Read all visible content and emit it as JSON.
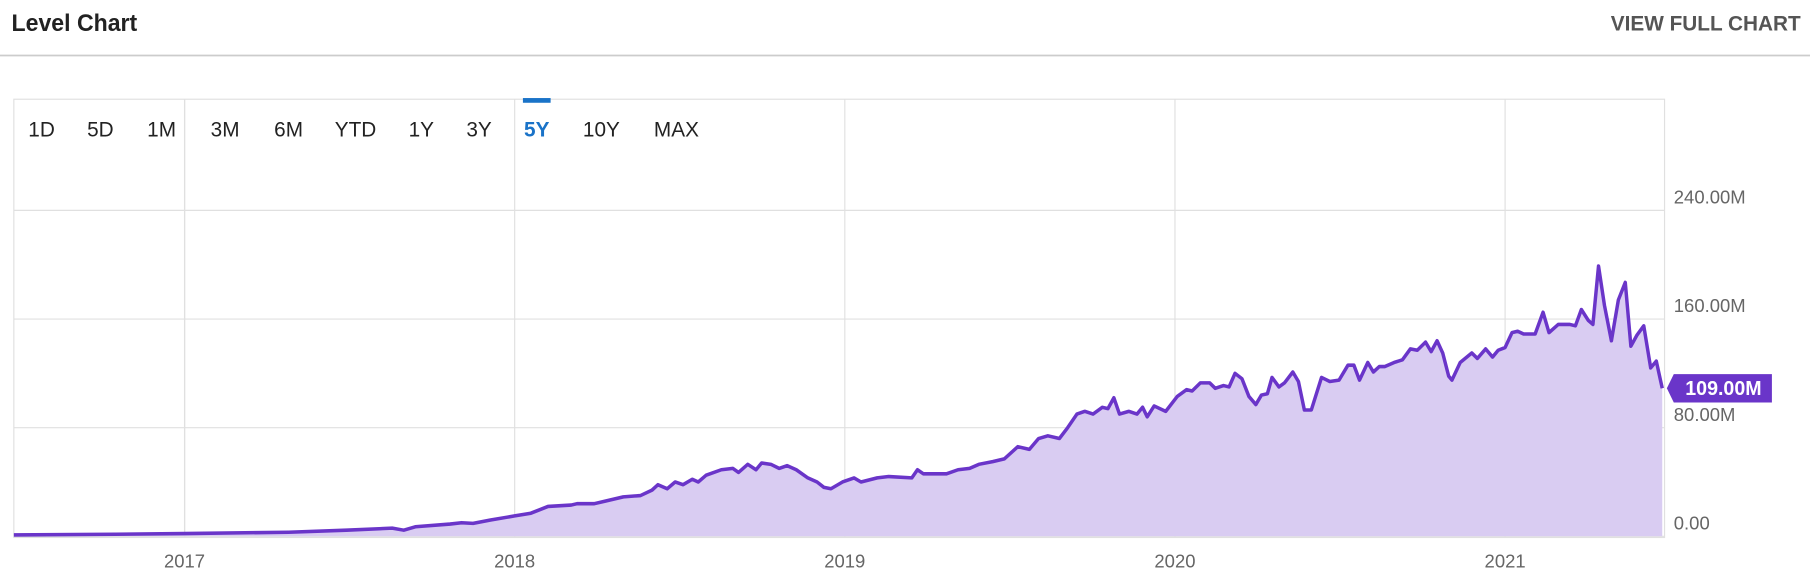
{
  "header": {
    "title": "Level Chart",
    "link": "VIEW FULL CHART"
  },
  "range_buttons": {
    "options": [
      "1D",
      "5D",
      "1M",
      "3M",
      "6M",
      "YTD",
      "1Y",
      "3Y",
      "5Y",
      "10Y",
      "MAX"
    ],
    "active": "5Y"
  },
  "chart_data": {
    "type": "area",
    "x": [
      2016.483,
      2016.79,
      2017.0,
      2017.315,
      2017.49,
      2017.629,
      2017.664,
      2017.699,
      2017.804,
      2017.839,
      2017.874,
      2017.927,
      2018.0,
      2018.049,
      2018.101,
      2018.171,
      2018.189,
      2018.241,
      2018.276,
      2018.329,
      2018.381,
      2018.416,
      2018.434,
      2018.462,
      2018.486,
      2018.51,
      2018.538,
      2018.556,
      2018.58,
      2018.626,
      2018.661,
      2018.678,
      2018.706,
      2018.731,
      2018.748,
      2018.776,
      2018.801,
      2018.825,
      2018.853,
      2018.888,
      2018.916,
      2018.937,
      2018.958,
      2018.993,
      2019.028,
      2019.049,
      2019.098,
      2019.133,
      2019.203,
      2019.22,
      2019.238,
      2019.308,
      2019.343,
      2019.378,
      2019.406,
      2019.448,
      2019.483,
      2019.524,
      2019.559,
      2019.587,
      2019.615,
      2019.65,
      2019.675,
      2019.703,
      2019.727,
      2019.752,
      2019.78,
      2019.797,
      2019.815,
      2019.832,
      2019.86,
      2019.885,
      2019.902,
      2019.916,
      2019.937,
      2019.972,
      2020.007,
      2020.035,
      2020.052,
      2020.077,
      2020.105,
      2020.122,
      2020.147,
      2020.164,
      2020.182,
      2020.203,
      2020.224,
      2020.245,
      2020.262,
      2020.28,
      2020.294,
      2020.315,
      2020.332,
      2020.357,
      2020.374,
      2020.392,
      2020.413,
      2020.444,
      2020.469,
      2020.497,
      2020.524,
      2020.542,
      2020.559,
      2020.584,
      2020.601,
      2020.619,
      2020.636,
      2020.664,
      2020.689,
      2020.713,
      2020.734,
      2020.759,
      2020.776,
      2020.794,
      2020.811,
      2020.829,
      2020.839,
      2020.864,
      2020.899,
      2020.916,
      2020.941,
      2020.962,
      2020.979,
      2021.0,
      2021.021,
      2021.038,
      2021.056,
      2021.091,
      2021.115,
      2021.133,
      2021.161,
      2021.196,
      2021.213,
      2021.231,
      2021.252,
      2021.266,
      2021.283,
      2021.301,
      2021.322,
      2021.343,
      2021.364,
      2021.381,
      2021.399,
      2021.42,
      2021.441,
      2021.458,
      2021.476
    ],
    "series": [
      {
        "color": "#6a35c9",
        "fill": "#d9ccf2",
        "values": [
          1,
          1.5,
          2,
          3,
          4.5,
          6,
          4.5,
          7,
          9,
          10,
          9.5,
          12,
          15,
          17,
          22,
          23,
          24,
          24,
          26,
          29,
          30,
          34,
          38,
          35,
          40,
          38,
          42,
          40,
          45,
          49,
          50,
          47,
          53,
          49,
          54,
          53,
          50,
          52,
          49,
          43,
          40,
          36,
          35,
          40,
          43,
          40,
          43,
          44,
          43,
          49,
          46,
          46,
          49,
          50,
          53,
          55,
          57,
          66,
          64,
          72,
          74,
          72,
          80,
          90,
          92,
          90,
          95,
          94,
          102,
          90,
          92,
          90,
          95,
          88,
          96,
          92,
          103,
          108,
          107,
          113,
          113,
          109,
          111,
          110,
          120,
          116,
          103,
          97,
          104,
          105,
          117,
          110,
          113,
          121,
          114,
          93,
          93,
          117,
          114,
          115,
          126,
          126,
          115,
          128,
          121,
          125,
          125,
          128,
          130,
          138,
          137,
          143,
          136,
          144,
          135,
          118,
          115,
          128,
          135,
          131,
          138,
          132,
          137,
          139,
          150,
          151,
          149,
          149,
          165,
          150,
          156,
          156,
          155,
          167,
          159,
          156,
          199,
          170,
          144,
          174,
          187,
          140,
          148,
          155,
          124,
          129,
          109
        ]
      }
    ],
    "current_label": "109.00M",
    "xlim": [
      2016.483,
      2021.483
    ],
    "xticks": [
      2017,
      2018,
      2019,
      2020,
      2021
    ],
    "ylim": [
      0,
      321
    ],
    "yticks": [
      {
        "value": 0,
        "label": "0.00"
      },
      {
        "value": 80,
        "label": "80.00M"
      },
      {
        "value": 160,
        "label": "160.00M"
      },
      {
        "value": 240,
        "label": "240.00M"
      }
    ],
    "grid": true
  }
}
